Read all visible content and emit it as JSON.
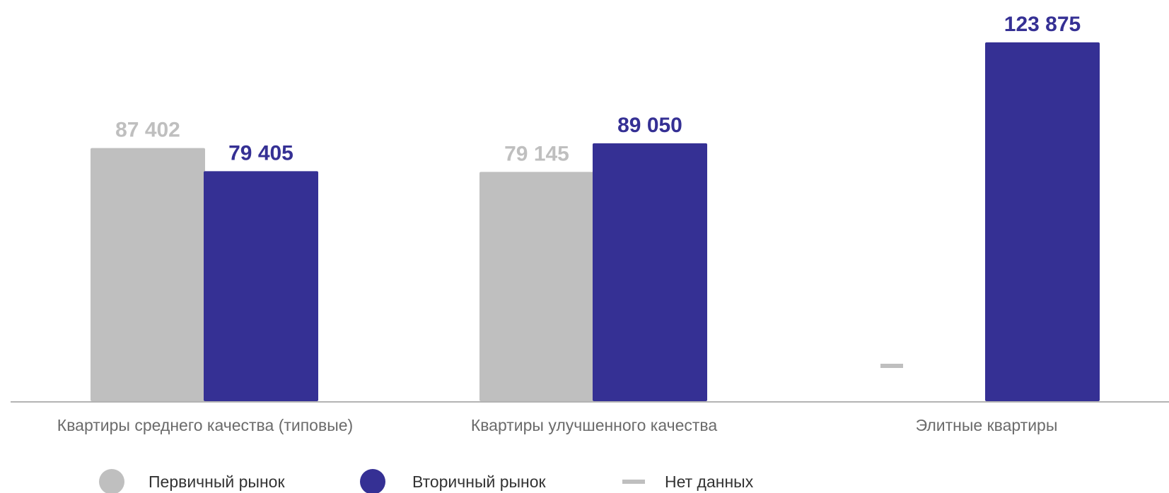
{
  "chart_data": {
    "type": "bar",
    "categories": [
      "Квартиры среднего качества (типовые)",
      "Квартиры улучшенного качества",
      "Элитные квартиры"
    ],
    "series": [
      {
        "name": "Первичный рынок",
        "color": "#bfbfbf",
        "values": [
          87402,
          79145,
          null
        ],
        "labels": [
          "87 402",
          "79 145",
          ""
        ]
      },
      {
        "name": "Вторичный рынок",
        "color": "#353094",
        "values": [
          79405,
          89050,
          123875
        ],
        "labels": [
          "79 405",
          "89 050",
          "123 875"
        ]
      }
    ],
    "ylim": [
      0,
      123875
    ],
    "grid": false,
    "no_data_marker": {
      "label": "Нет данных",
      "color": "#bfbfbf",
      "series": "Первичный рынок",
      "category": "Элитные квартиры"
    },
    "legend_position": "bottom",
    "baseline_color": "#b3b3b3"
  }
}
